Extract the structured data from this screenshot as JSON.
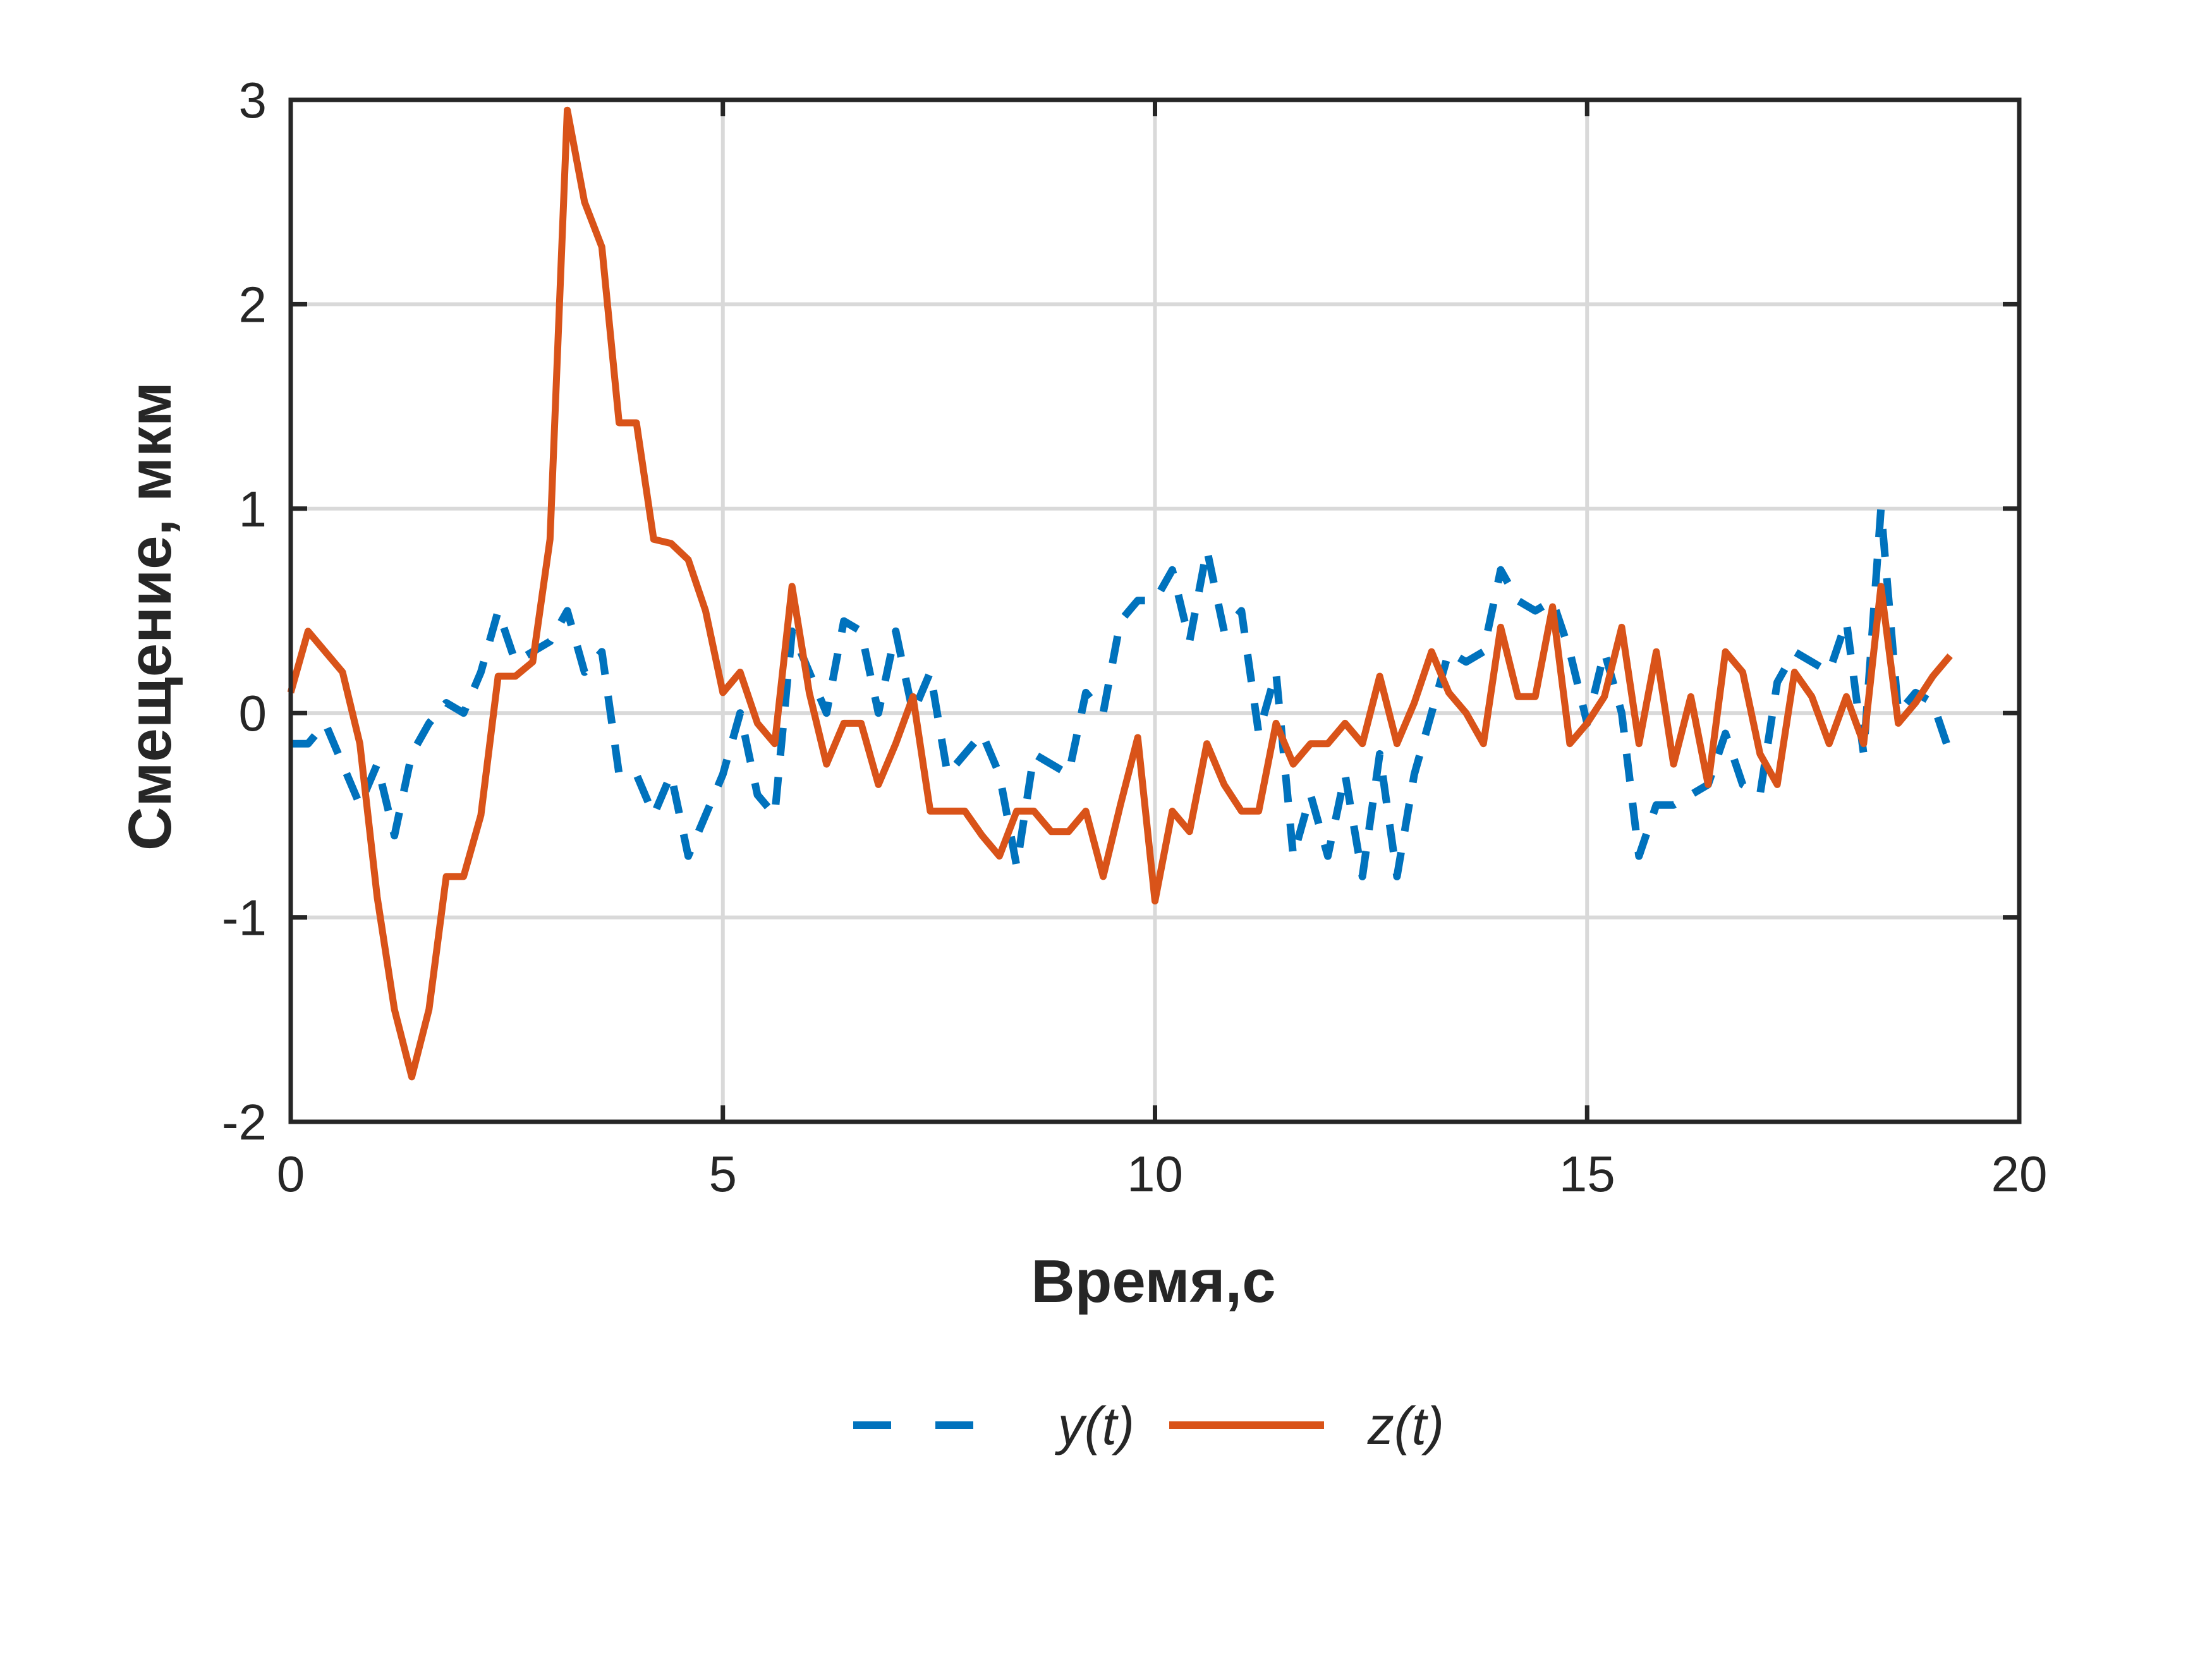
{
  "chart_data": {
    "type": "line",
    "xlabel": "Время,с",
    "ylabel": "Смещение, мкм",
    "xlim": [
      0,
      20
    ],
    "ylim": [
      -2,
      3
    ],
    "xticks": [
      0,
      5,
      10,
      15,
      20
    ],
    "yticks": [
      -2,
      -1,
      0,
      1,
      2,
      3
    ],
    "grid": true,
    "legend_position": "bottom",
    "series": [
      {
        "name": "y(t)",
        "style": "dashed",
        "color": "#0072BD",
        "x": [
          0,
          0.2,
          0.4,
          0.6,
          0.8,
          1.0,
          1.2,
          1.4,
          1.6,
          1.8,
          2.0,
          2.2,
          2.4,
          2.6,
          2.8,
          3.0,
          3.2,
          3.4,
          3.6,
          3.8,
          4.0,
          4.2,
          4.4,
          4.6,
          4.8,
          5.0,
          5.2,
          5.4,
          5.6,
          5.8,
          6.0,
          6.2,
          6.4,
          6.6,
          6.8,
          7.0,
          7.2,
          7.4,
          7.6,
          7.8,
          8.0,
          8.2,
          8.4,
          8.6,
          8.8,
          9.0,
          9.2,
          9.4,
          9.6,
          9.8,
          10.0,
          10.2,
          10.4,
          10.6,
          10.8,
          11.0,
          11.2,
          11.4,
          11.6,
          11.8,
          12.0,
          12.2,
          12.4,
          12.6,
          12.8,
          13.0,
          13.2,
          13.4,
          13.6,
          13.8,
          14.0,
          14.2,
          14.4,
          14.6,
          14.8,
          15.0,
          15.2,
          15.4,
          15.6,
          15.8,
          16.0,
          16.2,
          16.4,
          16.6,
          16.8,
          17.0,
          17.2,
          17.4,
          17.6,
          17.8,
          18.0,
          18.2,
          18.4,
          18.6,
          18.8,
          19.0,
          19.2
        ],
        "y": [
          -0.15,
          -0.15,
          -0.05,
          -0.25,
          -0.45,
          -0.25,
          -0.6,
          -0.2,
          -0.05,
          0.05,
          0.0,
          0.2,
          0.5,
          0.25,
          0.3,
          0.35,
          0.5,
          0.2,
          0.3,
          -0.3,
          -0.3,
          -0.5,
          -0.3,
          -0.7,
          -0.5,
          -0.3,
          0.0,
          -0.4,
          -0.5,
          0.4,
          0.2,
          0.0,
          0.45,
          0.4,
          0.0,
          0.4,
          0.0,
          0.2,
          -0.3,
          -0.2,
          -0.1,
          -0.3,
          -0.75,
          -0.2,
          -0.25,
          -0.3,
          0.1,
          0.0,
          0.45,
          0.55,
          0.55,
          0.7,
          0.35,
          0.8,
          0.4,
          0.5,
          -0.1,
          0.2,
          -0.7,
          -0.4,
          -0.7,
          -0.3,
          -0.8,
          -0.2,
          -0.8,
          -0.3,
          0.0,
          0.3,
          0.25,
          0.3,
          0.7,
          0.55,
          0.5,
          0.55,
          0.3,
          -0.05,
          0.3,
          0.0,
          -0.7,
          -0.45,
          -0.45,
          -0.4,
          -0.35,
          -0.1,
          -0.35,
          -0.4,
          0.15,
          0.3,
          0.25,
          0.2,
          0.45,
          -0.2,
          1.0,
          0.0,
          0.1,
          0.05,
          -0.2
        ]
      },
      {
        "name": "z(t)",
        "style": "solid",
        "color": "#D95319",
        "x": [
          0,
          0.2,
          0.4,
          0.6,
          0.8,
          1.0,
          1.2,
          1.4,
          1.6,
          1.8,
          2.0,
          2.2,
          2.4,
          2.6,
          2.8,
          3.0,
          3.2,
          3.4,
          3.6,
          3.8,
          4.0,
          4.2,
          4.4,
          4.6,
          4.8,
          5.0,
          5.2,
          5.4,
          5.6,
          5.8,
          6.0,
          6.2,
          6.4,
          6.6,
          6.8,
          7.0,
          7.2,
          7.4,
          7.6,
          7.8,
          8.0,
          8.2,
          8.4,
          8.6,
          8.8,
          9.0,
          9.2,
          9.4,
          9.6,
          9.8,
          10.0,
          10.2,
          10.4,
          10.6,
          10.8,
          11.0,
          11.2,
          11.4,
          11.6,
          11.8,
          12.0,
          12.2,
          12.4,
          12.6,
          12.8,
          13.0,
          13.2,
          13.4,
          13.6,
          13.8,
          14.0,
          14.2,
          14.4,
          14.6,
          14.8,
          15.0,
          15.2,
          15.4,
          15.6,
          15.8,
          16.0,
          16.2,
          16.4,
          16.6,
          16.8,
          17.0,
          17.2,
          17.4,
          17.6,
          17.8,
          18.0,
          18.2,
          18.4,
          18.6,
          18.8,
          19.0,
          19.2
        ],
        "y": [
          0.1,
          0.4,
          0.3,
          0.2,
          -0.15,
          -0.9,
          -1.45,
          -1.78,
          -1.45,
          -0.8,
          -0.8,
          -0.5,
          0.18,
          0.18,
          0.25,
          0.85,
          2.95,
          2.5,
          2.28,
          1.42,
          1.42,
          0.85,
          0.83,
          0.75,
          0.5,
          0.1,
          0.2,
          -0.05,
          -0.15,
          0.62,
          0.1,
          -0.25,
          -0.05,
          -0.05,
          -0.35,
          -0.15,
          0.08,
          -0.48,
          -0.48,
          -0.48,
          -0.6,
          -0.7,
          -0.48,
          -0.48,
          -0.58,
          -0.58,
          -0.48,
          -0.8,
          -0.45,
          -0.12,
          -0.92,
          -0.48,
          -0.58,
          -0.15,
          -0.35,
          -0.48,
          -0.48,
          -0.05,
          -0.25,
          -0.15,
          -0.15,
          -0.05,
          -0.15,
          0.18,
          -0.15,
          0.05,
          0.3,
          0.1,
          0.0,
          -0.15,
          0.42,
          0.08,
          0.08,
          0.52,
          -0.15,
          -0.05,
          0.08,
          0.42,
          -0.15,
          0.3,
          -0.25,
          0.08,
          -0.35,
          0.3,
          0.2,
          -0.2,
          -0.35,
          0.2,
          0.08,
          -0.15,
          0.08,
          -0.15,
          0.62,
          -0.05,
          0.05,
          0.18,
          0.28
        ]
      }
    ]
  }
}
